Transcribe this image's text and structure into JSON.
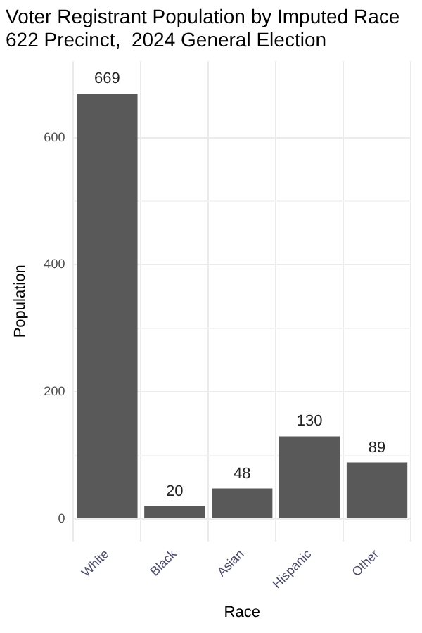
{
  "chart_data": {
    "type": "bar",
    "title": "Voter Registrant Population by Imputed Race",
    "subtitle": "622 Precinct,  2024 General Election",
    "xlabel": "Race",
    "ylabel": "Population",
    "categories": [
      "White",
      "Black",
      "Asian",
      "Hispanic",
      "Other"
    ],
    "values": [
      669,
      20,
      48,
      130,
      89
    ],
    "color": "#595959",
    "ylim": [
      -35,
      720
    ],
    "yticks": [
      0,
      {
        "value": 100,
        "label": null
      },
      200,
      {
        "value": 300,
        "label": null
      },
      400,
      {
        "value": 500,
        "label": null
      },
      600
    ],
    "grid": true,
    "legend": false,
    "data_labels": true
  }
}
